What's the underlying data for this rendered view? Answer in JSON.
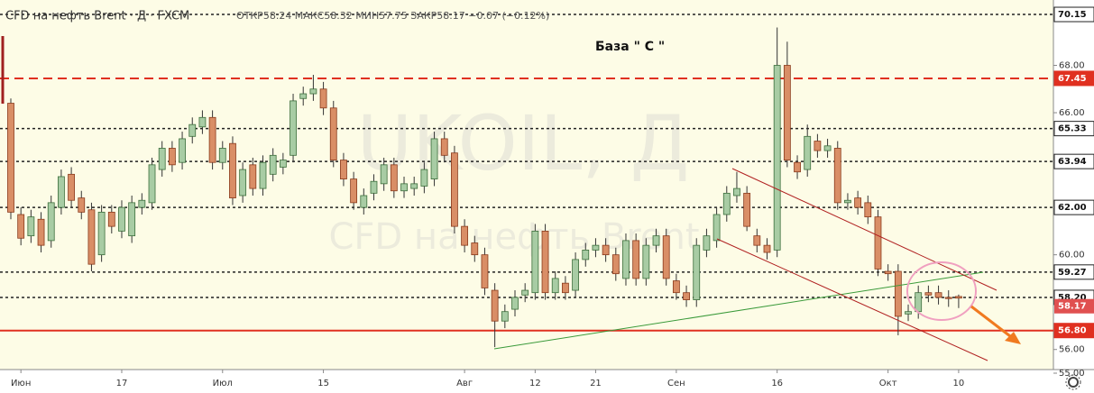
{
  "chart_data": {
    "type": "candlestick",
    "title": "CFD на нефть Brent · Д · FXCM",
    "ohlc_text": "ОТКР58.24 МАКС58.32 МИН57.75 ЗАКР58.17 −0.07 (−0.12%)",
    "watermark": "UKOIL, Д",
    "watermark_subtitle": "CFD на нефть Brent",
    "annotation": "База  \" С \"",
    "categories": [
      null,
      "Июн",
      null,
      null,
      null,
      null,
      null,
      null,
      null,
      null,
      null,
      "17",
      null,
      null,
      null,
      null,
      null,
      null,
      null,
      null,
      null,
      "Июл",
      null,
      null,
      null,
      null,
      null,
      null,
      null,
      null,
      null,
      "15",
      null,
      null,
      null,
      null,
      null,
      null,
      null,
      null,
      null,
      null,
      null,
      null,
      null,
      "Авг",
      null,
      null,
      null,
      null,
      null,
      null,
      "12",
      null,
      null,
      null,
      null,
      null,
      "21",
      null,
      null,
      null,
      null,
      null,
      null,
      null,
      "Сен",
      null,
      null,
      null,
      null,
      null,
      null,
      null,
      null,
      null,
      "16",
      null,
      null,
      null,
      null,
      null,
      null,
      null,
      null,
      null,
      null,
      "Окт",
      null,
      null,
      null,
      null,
      null,
      null,
      "10"
    ],
    "open": [
      66.4,
      61.7,
      60.8,
      61.5,
      60.6,
      62.0,
      63.4,
      62.4,
      61.9,
      60.0,
      61.8,
      61.0,
      60.8,
      62.0,
      62.2,
      63.6,
      64.5,
      63.9,
      65.0,
      65.4,
      65.8,
      63.9,
      64.7,
      62.5,
      63.8,
      62.8,
      63.4,
      63.7,
      64.2,
      66.6,
      66.8,
      67.0,
      66.2,
      64.0,
      63.2,
      62.0,
      62.6,
      63.0,
      63.8,
      62.7,
      62.8,
      62.9,
      63.2,
      64.9,
      64.3,
      61.2,
      60.5,
      60.0,
      58.5,
      57.2,
      57.7,
      58.3,
      58.4,
      61.0,
      58.4,
      58.8,
      58.5,
      59.8,
      60.2,
      60.4,
      60.0,
      59.0,
      60.6,
      59.0,
      60.4,
      60.8,
      58.9,
      58.4,
      58.1,
      60.2,
      60.6,
      61.7,
      62.5,
      62.6,
      60.8,
      60.4,
      60.2,
      68.0,
      63.9,
      63.6,
      64.8,
      64.4,
      64.5,
      62.2,
      62.4,
      62.2,
      61.6,
      59.3,
      59.3,
      57.5,
      57.6,
      58.4,
      58.4,
      58.2,
      58.24
    ],
    "high": [
      66.6,
      62.0,
      61.9,
      61.8,
      62.5,
      63.6,
      63.7,
      62.7,
      62.2,
      62.1,
      62.1,
      62.3,
      62.5,
      62.6,
      64.1,
      64.8,
      64.8,
      65.2,
      65.8,
      66.1,
      66.1,
      64.8,
      65.0,
      63.9,
      64.1,
      64.2,
      64.5,
      64.3,
      66.8,
      67.1,
      67.6,
      67.3,
      66.5,
      64.3,
      63.5,
      62.8,
      63.4,
      64.1,
      64.1,
      63.3,
      63.3,
      63.9,
      65.2,
      65.2,
      64.6,
      61.5,
      60.8,
      60.3,
      58.8,
      57.9,
      58.5,
      58.8,
      61.3,
      61.3,
      59.3,
      59.1,
      60.1,
      60.5,
      60.7,
      60.7,
      60.3,
      60.9,
      60.9,
      60.7,
      61.1,
      61.1,
      59.2,
      58.7,
      60.7,
      61.1,
      62.0,
      62.9,
      63.5,
      62.9,
      61.1,
      60.7,
      69.6,
      69.0,
      64.2,
      65.5,
      65.1,
      64.9,
      64.8,
      62.6,
      62.7,
      62.5,
      61.9,
      59.6,
      59.6,
      57.9,
      58.7,
      58.7,
      58.7,
      58.5,
      58.32
    ],
    "low": [
      61.5,
      60.4,
      60.5,
      60.1,
      60.3,
      61.7,
      62.0,
      61.5,
      59.3,
      59.7,
      60.9,
      60.7,
      60.5,
      61.7,
      61.9,
      63.3,
      63.5,
      63.6,
      64.7,
      65.1,
      63.6,
      63.6,
      62.1,
      62.2,
      62.5,
      62.5,
      63.1,
      63.4,
      63.9,
      66.3,
      66.5,
      65.9,
      63.7,
      62.9,
      61.9,
      61.7,
      62.3,
      62.7,
      62.4,
      62.4,
      62.5,
      62.6,
      62.9,
      63.9,
      60.9,
      60.1,
      59.7,
      58.3,
      56.1,
      56.9,
      57.4,
      58.0,
      58.1,
      58.1,
      58.1,
      58.1,
      58.2,
      59.5,
      59.9,
      59.7,
      58.9,
      58.7,
      58.7,
      58.7,
      60.1,
      58.7,
      58.1,
      57.8,
      57.8,
      59.9,
      60.3,
      61.4,
      62.2,
      61.0,
      60.1,
      59.8,
      59.9,
      63.7,
      63.2,
      63.3,
      64.1,
      64.1,
      61.9,
      61.9,
      61.7,
      61.3,
      59.1,
      58.9,
      56.6,
      57.2,
      57.3,
      58.0,
      57.9,
      57.8,
      57.75
    ],
    "close": [
      61.8,
      60.7,
      61.6,
      60.4,
      62.2,
      63.3,
      62.3,
      61.8,
      59.6,
      61.8,
      61.2,
      62.0,
      62.2,
      62.3,
      63.8,
      64.5,
      63.8,
      64.9,
      65.5,
      65.8,
      63.9,
      64.5,
      62.4,
      63.6,
      62.8,
      63.9,
      64.2,
      64.0,
      66.5,
      66.8,
      67.0,
      66.2,
      64.0,
      63.2,
      62.2,
      62.5,
      63.1,
      63.8,
      62.7,
      63.0,
      63.0,
      63.6,
      64.9,
      64.2,
      61.2,
      60.4,
      60.0,
      58.6,
      57.2,
      57.6,
      58.2,
      58.5,
      61.0,
      58.4,
      59.0,
      58.4,
      59.8,
      60.2,
      60.4,
      60.0,
      59.2,
      60.6,
      59.0,
      60.4,
      60.8,
      59.0,
      58.4,
      58.1,
      60.4,
      60.8,
      61.7,
      62.6,
      62.8,
      61.2,
      60.4,
      60.1,
      68.0,
      64.0,
      63.5,
      65.0,
      64.4,
      64.6,
      62.2,
      62.3,
      62.0,
      61.6,
      59.4,
      59.2,
      57.4,
      57.6,
      58.4,
      58.3,
      58.2,
      58.15,
      58.17
    ],
    "up_color": "#a8cca4",
    "down_color": "#d98e66",
    "ylim": [
      55.0,
      70.76
    ],
    "yticks": [
      {
        "value": 55,
        "label": "55.00"
      },
      {
        "value": 56,
        "label": "56.00"
      },
      {
        "value": 60,
        "label": "60.00"
      },
      {
        "value": 66,
        "label": "66.00"
      },
      {
        "value": 68,
        "label": "68.00"
      }
    ],
    "levels": [
      {
        "value": 70.15,
        "label": "70.15",
        "color": "#222222",
        "style": "dotted"
      },
      {
        "value": 67.45,
        "label": "67.45",
        "color": "#e03020",
        "style": "dashed"
      },
      {
        "value": 65.33,
        "label": "65.33",
        "color": "#222222",
        "style": "dotted"
      },
      {
        "value": 63.94,
        "label": "63.94",
        "color": "#222222",
        "style": "dotted"
      },
      {
        "value": 62.0,
        "label": "62.00",
        "color": "#222222",
        "style": "dotted"
      },
      {
        "value": 59.27,
        "label": "59.27",
        "color": "#222222",
        "style": "dotted"
      },
      {
        "value": 58.2,
        "label": "58.20",
        "color": "#222222",
        "style": "dotted"
      },
      {
        "value": 56.8,
        "label": "56.80",
        "color": "#e03020",
        "style": "solid"
      }
    ],
    "last_price": {
      "value": 58.17,
      "label": "58.17",
      "color": "#e05050"
    }
  }
}
